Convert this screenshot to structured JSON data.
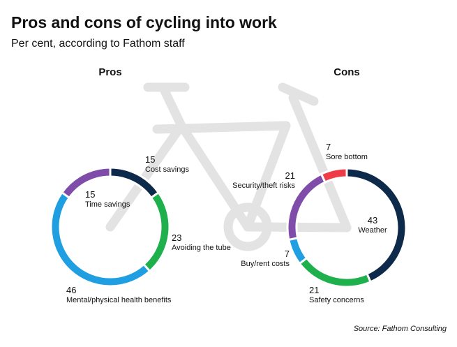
{
  "title": "Pros and cons of cycling into work",
  "subtitle": "Per cent, according to Fathom staff",
  "source": "Source: Fathom Consulting",
  "chart_data": [
    {
      "type": "donut",
      "title": "Pros",
      "categories": [
        "Cost savings",
        "Avoiding the tube",
        "Mental/physical health benefits",
        "Time savings"
      ],
      "values": [
        15,
        23,
        46,
        15
      ],
      "colors": [
        "#0e2a4b",
        "#1db04c",
        "#1f9fe2",
        "#7f4ca9"
      ]
    },
    {
      "type": "donut",
      "title": "Cons",
      "categories": [
        "Weather",
        "Safety concerns",
        "Buy/rent costs",
        "Security/theft risks",
        "Sore bottom"
      ],
      "values": [
        43,
        21,
        7,
        21,
        7
      ],
      "colors": [
        "#0e2a4b",
        "#1db04c",
        "#1f9fe2",
        "#7f4ca9",
        "#ef3b45"
      ]
    }
  ]
}
